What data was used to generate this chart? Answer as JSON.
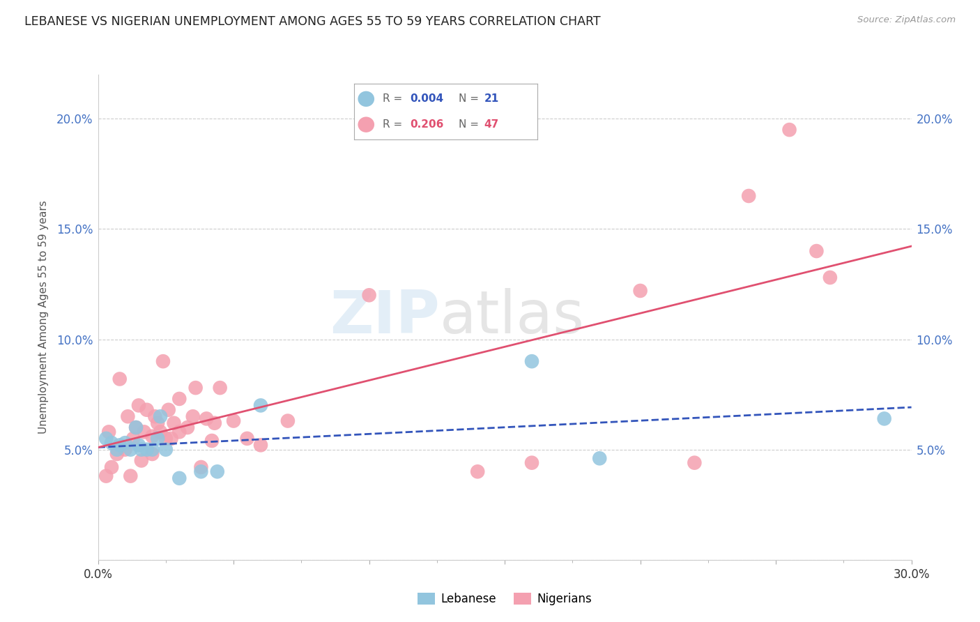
{
  "title": "LEBANESE VS NIGERIAN UNEMPLOYMENT AMONG AGES 55 TO 59 YEARS CORRELATION CHART",
  "source": "Source: ZipAtlas.com",
  "ylabel": "Unemployment Among Ages 55 to 59 years",
  "xlim": [
    0.0,
    0.3
  ],
  "ylim": [
    0.0,
    0.22
  ],
  "ytick_positions": [
    0.0,
    0.05,
    0.1,
    0.15,
    0.2
  ],
  "ytick_labels": [
    "",
    "5.0%",
    "10.0%",
    "15.0%",
    "20.0%"
  ],
  "xtick_positions": [
    0.0,
    0.05,
    0.1,
    0.15,
    0.2,
    0.25,
    0.3
  ],
  "xtick_labels_show": {
    "0.0": "0.0%",
    "0.30": "30.0%"
  },
  "lebanese_color": "#92C5DE",
  "nigerian_color": "#F4A0B0",
  "lebanese_line_color": "#3355BB",
  "nigerian_line_color": "#E05070",
  "lebanese_R": "0.004",
  "lebanese_N": "21",
  "nigerian_R": "0.206",
  "nigerian_N": "47",
  "lebanese_x": [
    0.003,
    0.005,
    0.007,
    0.008,
    0.01,
    0.012,
    0.014,
    0.015,
    0.016,
    0.018,
    0.02,
    0.022,
    0.023,
    0.025,
    0.03,
    0.038,
    0.044,
    0.06,
    0.16,
    0.185,
    0.29
  ],
  "lebanese_y": [
    0.055,
    0.053,
    0.05,
    0.052,
    0.053,
    0.05,
    0.06,
    0.052,
    0.05,
    0.05,
    0.05,
    0.055,
    0.065,
    0.05,
    0.037,
    0.04,
    0.04,
    0.07,
    0.09,
    0.046,
    0.064
  ],
  "nigerian_x": [
    0.003,
    0.004,
    0.005,
    0.007,
    0.008,
    0.01,
    0.011,
    0.012,
    0.013,
    0.014,
    0.015,
    0.016,
    0.017,
    0.018,
    0.02,
    0.02,
    0.021,
    0.022,
    0.023,
    0.024,
    0.025,
    0.026,
    0.027,
    0.028,
    0.03,
    0.03,
    0.033,
    0.035,
    0.036,
    0.038,
    0.04,
    0.042,
    0.043,
    0.045,
    0.05,
    0.055,
    0.06,
    0.07,
    0.1,
    0.14,
    0.16,
    0.2,
    0.22,
    0.24,
    0.255,
    0.265,
    0.27
  ],
  "nigerian_y": [
    0.038,
    0.058,
    0.042,
    0.048,
    0.082,
    0.05,
    0.065,
    0.038,
    0.055,
    0.06,
    0.07,
    0.045,
    0.058,
    0.068,
    0.048,
    0.056,
    0.065,
    0.062,
    0.058,
    0.09,
    0.055,
    0.068,
    0.055,
    0.062,
    0.073,
    0.058,
    0.06,
    0.065,
    0.078,
    0.042,
    0.064,
    0.054,
    0.062,
    0.078,
    0.063,
    0.055,
    0.052,
    0.063,
    0.12,
    0.04,
    0.044,
    0.122,
    0.044,
    0.165,
    0.195,
    0.14,
    0.128
  ]
}
